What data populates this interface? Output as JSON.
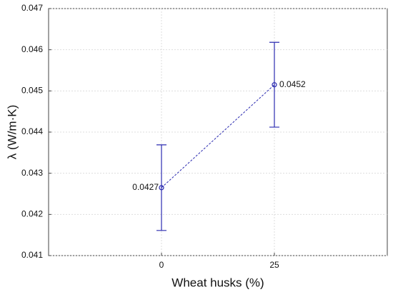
{
  "chart_data": {
    "type": "line",
    "x_label": "Wheat husks (%)",
    "y_label": "λ (W/m·K)",
    "x": [
      0,
      25
    ],
    "series": [
      {
        "color": "#2b2bb0",
        "values": [
          0.04265,
          0.04515
        ],
        "errors": [
          0.00104,
          0.00103
        ],
        "value_labels": [
          "0.0427",
          "0.0452"
        ]
      }
    ],
    "xlim": [
      -25,
      50
    ],
    "xticks": [
      0,
      25
    ],
    "ylim": [
      0.041,
      0.047
    ],
    "yticks": [
      0.041,
      0.042,
      0.043,
      0.044,
      0.045,
      0.046,
      0.047
    ],
    "grid": true
  }
}
